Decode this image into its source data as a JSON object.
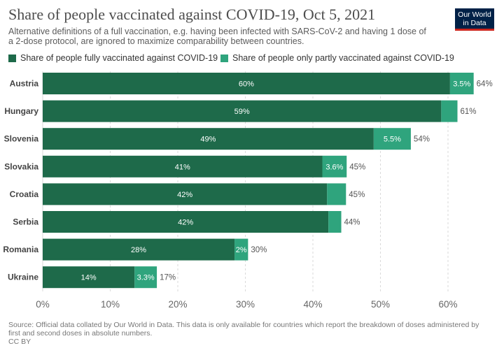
{
  "title": "Share of people vaccinated against COVID-19, Oct 5, 2021",
  "subtitle": "Alternative definitions of a full vaccination, e.g. having been infected with SARS-CoV-2 and having 1 dose of a 2-dose protocol, are ignored to maximize comparability between countries.",
  "logo": {
    "line1": "Our World",
    "line2": "in Data"
  },
  "footer": {
    "source": "Source: Official data collated by Our World in Data. This data is only available for countries which report the breakdown of doses administered by first and second doses in absolute numbers.",
    "license": "CC BY"
  },
  "colors": {
    "full": "#1e6a4a",
    "partial": "#2fa47d",
    "text": "#333333"
  },
  "chart_data": {
    "type": "bar",
    "orientation": "horizontal",
    "stacked": true,
    "categories": [
      "Austria",
      "Hungary",
      "Slovenia",
      "Slovakia",
      "Croatia",
      "Serbia",
      "Romania",
      "Ukraine"
    ],
    "series": [
      {
        "name": "Share of people fully vaccinated against COVID-19",
        "values": [
          60.3,
          59.0,
          49.0,
          41.4,
          42.1,
          42.3,
          28.4,
          13.6
        ],
        "labels": [
          "60%",
          "59%",
          "49%",
          "41%",
          "42%",
          "42%",
          "28%",
          "14%"
        ]
      },
      {
        "name": "Share of people only partly vaccinated against COVID-19",
        "values": [
          3.5,
          2.4,
          5.5,
          3.6,
          2.8,
          1.9,
          2.0,
          3.3
        ],
        "labels": [
          "3.5%",
          "",
          "5.5%",
          "3.6%",
          "",
          "",
          "2%",
          "3.3%"
        ]
      }
    ],
    "totals": [
      "64%",
      "61%",
      "54%",
      "45%",
      "45%",
      "44%",
      "30%",
      "17%"
    ],
    "xticks": [
      0,
      10,
      20,
      30,
      40,
      50,
      60
    ],
    "xtick_labels": [
      "0%",
      "10%",
      "20%",
      "30%",
      "40%",
      "50%",
      "60%"
    ],
    "xlim": [
      0,
      65
    ],
    "grid": "vertical-dashed",
    "legend_position": "top-left"
  }
}
